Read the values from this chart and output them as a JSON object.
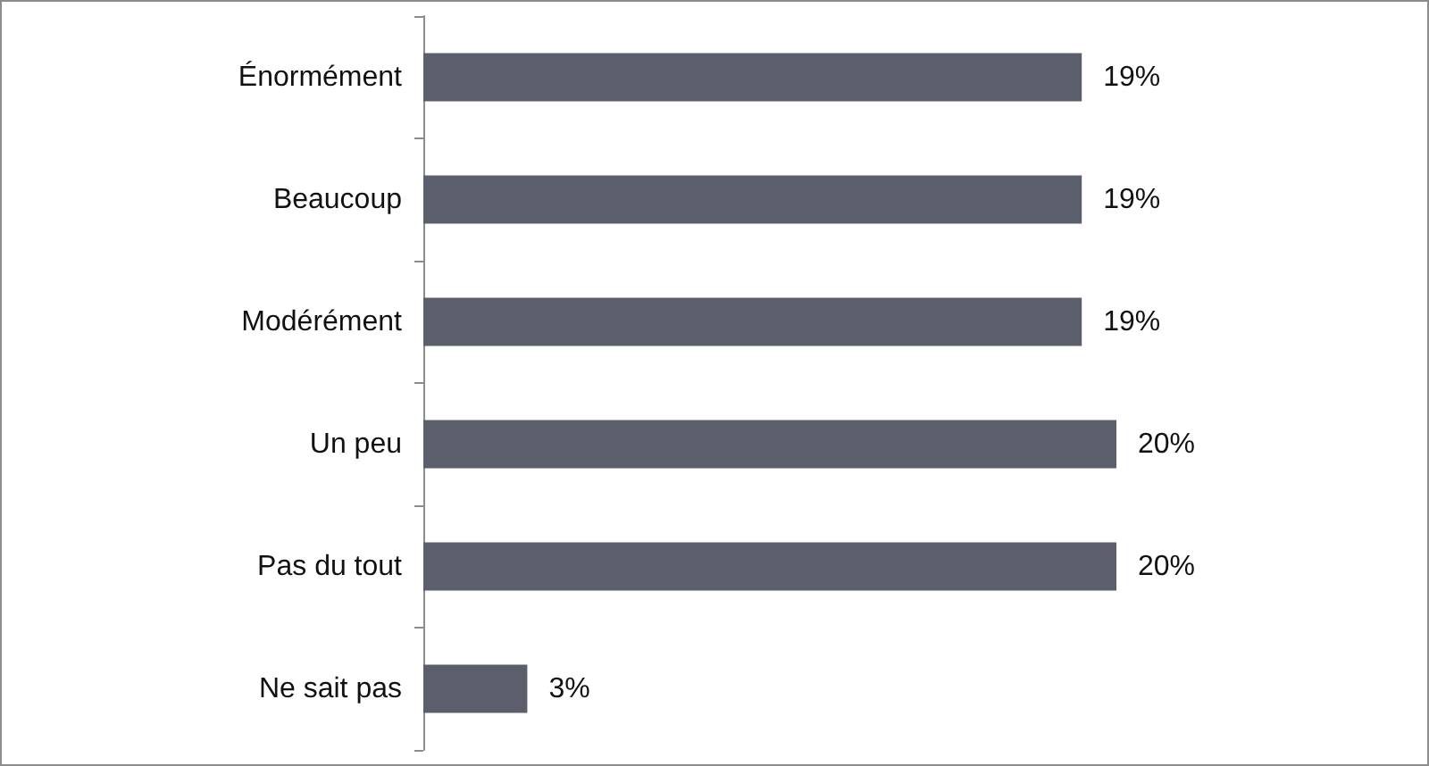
{
  "chart_data": {
    "type": "bar",
    "orientation": "horizontal",
    "categories": [
      "Énormément",
      "Beaucoup",
      "Modérément",
      "Un peu",
      "Pas du tout",
      "Ne sait pas"
    ],
    "values": [
      19,
      19,
      19,
      20,
      20,
      3
    ],
    "value_labels": [
      "19%",
      "19%",
      "19%",
      "20%",
      "20%",
      "3%"
    ],
    "color": "#5b5f6b",
    "grid": false
  }
}
